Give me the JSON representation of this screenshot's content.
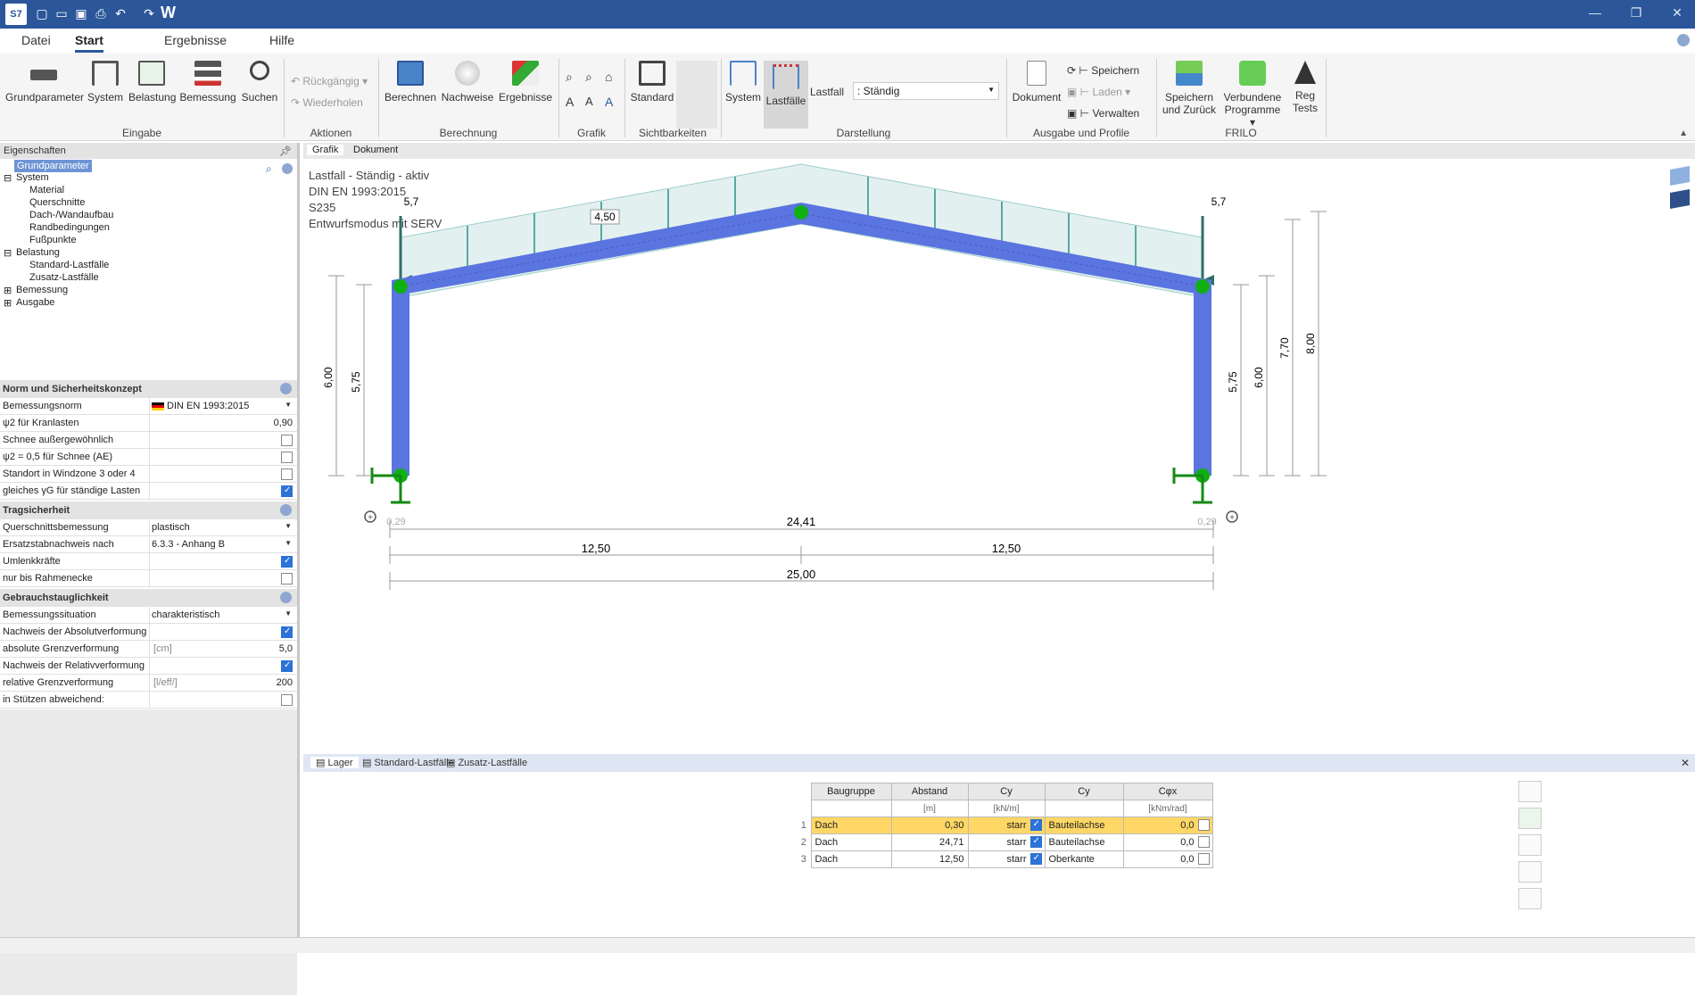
{
  "titlebar": {
    "app_icon": "S7",
    "w_label": "W",
    "window_controls": [
      "—",
      "❐",
      "✕"
    ]
  },
  "menu": {
    "tabs": [
      "Datei",
      "Start",
      "Ergebnisse",
      "Hilfe"
    ],
    "active": "Start"
  },
  "ribbon": {
    "buttons": {
      "grundparameter": "Grundparameter",
      "system": "System",
      "belastung": "Belastung",
      "bemessung": "Bemessung",
      "suchen": "Suchen",
      "rueckgaengig": "Rückgängig",
      "wiederholen": "Wiederholen",
      "berechnen": "Berechnen",
      "nachweise": "Nachweise",
      "ergebnisse": "Ergebnisse",
      "standard": "Standard",
      "system2": "System",
      "lastfaelle": "Lastfälle",
      "dokument": "Dokument",
      "speichern": "Speichern",
      "laden": "Laden",
      "verwalten": "Verwalten",
      "speichern_zurueck_1": "Speichern",
      "speichern_zurueck_2": "und Zurück",
      "verbundene_1": "Verbundene",
      "verbundene_2": "Programme",
      "reg_1": "Reg",
      "reg_2": "Tests"
    },
    "groups": [
      "Eingabe",
      "Aktionen",
      "Berechnung",
      "Grafik",
      "Sichtbarkeiten",
      "Darstellung",
      "Ausgabe und Profile",
      "FRILO"
    ],
    "lastfall_label": "Lastfall",
    "lastfall_value": ": Ständig"
  },
  "left": {
    "eigenschaften": "Eigenschaften",
    "tree": [
      "Grundparameter",
      "System",
      "Material",
      "Querschnitte",
      "Dach-/Wandaufbau",
      "Randbedingungen",
      "Fußpunkte",
      "Belastung",
      "Standard-Lastfälle",
      "Zusatz-Lastfälle",
      "Bemessung",
      "Ausgabe"
    ],
    "sections": {
      "norm": "Norm und Sicherheitskonzept",
      "trag": "Tragsicherheit",
      "gebr": "Gebrauchstauglichkeit"
    },
    "norm_rows": [
      {
        "label": "Bemessungsnorm",
        "value": "DIN EN 1993:2015"
      },
      {
        "label": "ψ2 für Kranlasten",
        "value": "0,90"
      },
      {
        "label": "Schnee außergewöhnlich"
      },
      {
        "label": "ψ2 = 0,5 für Schnee (AE)"
      },
      {
        "label": "Standort in Windzone 3 oder 4"
      },
      {
        "label": "gleiches γG für ständige Lasten"
      }
    ],
    "trag_rows": [
      {
        "label": "Querschnittsbemessung",
        "value": "plastisch"
      },
      {
        "label": "Ersatzstabnachweis nach",
        "value": "6.3.3 - Anhang B"
      },
      {
        "label": "Umlenkkräfte"
      },
      {
        "label": "nur bis Rahmenecke"
      }
    ],
    "gebr_rows": [
      {
        "label": "Bemessungssituation",
        "value": "charakteristisch"
      },
      {
        "label": "Nachweis der Absolutverformung"
      },
      {
        "label": "absolute Grenzverformung",
        "unit": "[cm]",
        "value": "5,0"
      },
      {
        "label": "Nachweis der Relativverformung"
      },
      {
        "label": "relative Grenzverformung",
        "unit": "[l/eff/]",
        "value": "200"
      },
      {
        "label": "in Stützen abweichend:"
      }
    ]
  },
  "doctabs": [
    "Grafik",
    "Dokument"
  ],
  "canvas": {
    "info": [
      "Lastfall - Ständig - aktiv",
      "DIN EN 1993:2015",
      "S235",
      "Entwurfsmodus mit SERV"
    ],
    "load_left": "5,7",
    "load_right": "5,7",
    "load_line": "4,50",
    "dims": {
      "h_left_outer": "6,00",
      "h_left_inner": "5,75",
      "h_right_inner": "5,75",
      "h_right_outer": "6,00",
      "h_770": "7,70",
      "h_800": "8,00",
      "off_left": "0,29",
      "off_right": "0,29",
      "span_inner": "24,41",
      "half_left": "12,50",
      "half_right": "12,50",
      "span_total": "25,00"
    }
  },
  "bottom": {
    "tabs": [
      "Lager",
      "Standard-Lastfälle",
      "Zusatz-Lastfälle"
    ],
    "table": {
      "headers": [
        "Baugruppe",
        "Abstand",
        "Cy",
        "Cy",
        "Cφx"
      ],
      "units": [
        "",
        "[m]",
        "[kN/m]",
        "",
        "[kNm/rad]"
      ],
      "rows": [
        {
          "n": "1",
          "bg": "Dach",
          "ab": "0,30",
          "cy": "starr",
          "ref": "Bauteilachse",
          "cp": "0,0"
        },
        {
          "n": "2",
          "bg": "Dach",
          "ab": "24,71",
          "cy": "starr",
          "ref": "Bauteilachse",
          "cp": "0,0"
        },
        {
          "n": "3",
          "bg": "Dach",
          "ab": "12,50",
          "cy": "starr",
          "ref": "Oberkante",
          "cp": "0,0"
        }
      ]
    }
  },
  "colors": {
    "accent": "#2b579a",
    "frame": "#5a74e0",
    "node": "#10b010",
    "load": "#5aa8a0"
  }
}
